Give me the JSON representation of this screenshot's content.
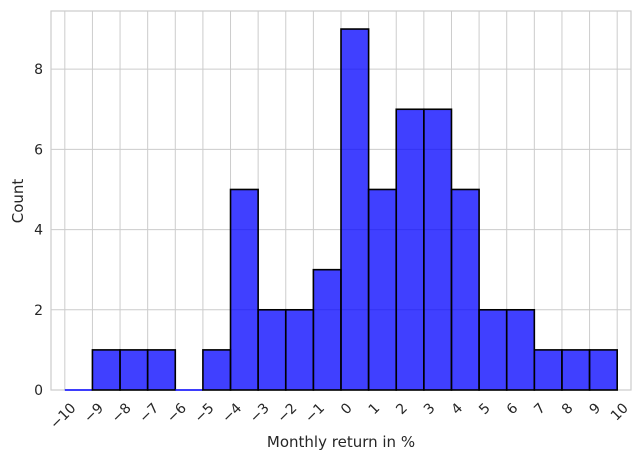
{
  "chart_data": {
    "type": "bar",
    "title": "",
    "xlabel": "Monthly return in %",
    "ylabel": "Count",
    "xlim": [
      -10.5,
      10.5
    ],
    "ylim": [
      0,
      9.45
    ],
    "grid": true,
    "x_ticks": [
      -10,
      -9,
      -8,
      -7,
      -6,
      -5,
      -4,
      -3,
      -2,
      -1,
      0,
      1,
      2,
      3,
      4,
      5,
      6,
      7,
      8,
      9,
      10
    ],
    "x_tick_labels": [
      "−10",
      "−9",
      "−8",
      "−7",
      "−6",
      "−5",
      "−4",
      "−3",
      "−2",
      "−1",
      "0",
      "1",
      "2",
      "3",
      "4",
      "5",
      "6",
      "7",
      "8",
      "9",
      "10"
    ],
    "y_ticks": [
      0,
      2,
      4,
      6,
      8
    ],
    "y_tick_labels": [
      "0",
      "2",
      "4",
      "6",
      "8"
    ],
    "bins": [
      {
        "start": -10,
        "end": -9,
        "count": 0
      },
      {
        "start": -9,
        "end": -8,
        "count": 1
      },
      {
        "start": -8,
        "end": -7,
        "count": 1
      },
      {
        "start": -7,
        "end": -6,
        "count": 1
      },
      {
        "start": -6,
        "end": -5,
        "count": 0
      },
      {
        "start": -5,
        "end": -4,
        "count": 1
      },
      {
        "start": -4,
        "end": -3,
        "count": 5
      },
      {
        "start": -3,
        "end": -2,
        "count": 2
      },
      {
        "start": -2,
        "end": -1,
        "count": 2
      },
      {
        "start": -1,
        "end": 0,
        "count": 3
      },
      {
        "start": 0,
        "end": 1,
        "count": 9
      },
      {
        "start": 1,
        "end": 2,
        "count": 5
      },
      {
        "start": 2,
        "end": 3,
        "count": 7
      },
      {
        "start": 3,
        "end": 4,
        "count": 7
      },
      {
        "start": 4,
        "end": 5,
        "count": 5
      },
      {
        "start": 5,
        "end": 6,
        "count": 2
      },
      {
        "start": 6,
        "end": 7,
        "count": 2
      },
      {
        "start": 7,
        "end": 8,
        "count": 1
      },
      {
        "start": 8,
        "end": 9,
        "count": 1
      },
      {
        "start": 9,
        "end": 10,
        "count": 1
      }
    ],
    "colors": {
      "bar_fill": "#0000ff",
      "bar_edge": "#000000",
      "grid": "#cccccc"
    }
  }
}
